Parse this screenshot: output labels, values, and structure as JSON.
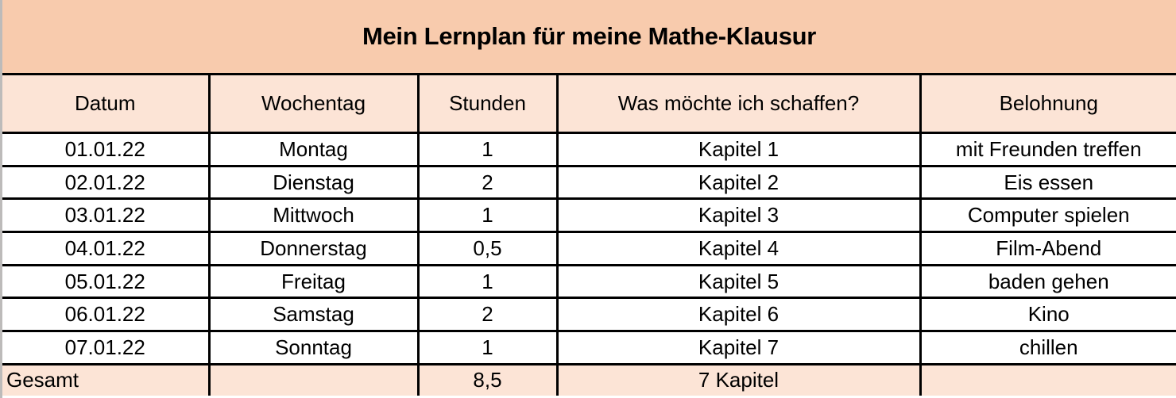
{
  "title": "Mein Lernplan für meine Mathe-Klausur",
  "colors": {
    "title_bg": "#F8CBAD",
    "header_bg": "#FCE4D6",
    "row_bg": "#FFFFFF",
    "border": "#000000",
    "text": "#000000",
    "page_edge": "#BDBBBA"
  },
  "table": {
    "column_keys": [
      "datum",
      "wochentag",
      "stunden",
      "ziel",
      "belohnung"
    ],
    "columns": [
      "Datum",
      "Wochentag",
      "Stunden",
      "Was möchte ich schaffen?",
      "Belohnung"
    ],
    "rows": [
      [
        "01.01.22",
        "Montag",
        "1",
        "Kapitel 1",
        "mit Freunden treffen"
      ],
      [
        "02.01.22",
        "Dienstag",
        "2",
        "Kapitel 2",
        "Eis essen"
      ],
      [
        "03.01.22",
        "Mittwoch",
        "1",
        "Kapitel 3",
        "Computer spielen"
      ],
      [
        "04.01.22",
        "Donnerstag",
        "0,5",
        "Kapitel 4",
        "Film-Abend"
      ],
      [
        "05.01.22",
        "Freitag",
        "1",
        "Kapitel 5",
        "baden gehen"
      ],
      [
        "06.01.22",
        "Samstag",
        "2",
        "Kapitel 6",
        "Kino"
      ],
      [
        "07.01.22",
        "Sonntag",
        "1",
        "Kapitel 7",
        "chillen"
      ]
    ],
    "footer": {
      "label": "Gesamt",
      "wochentag": "",
      "stunden": "8,5",
      "ziel": "7 Kapitel",
      "belohnung": ""
    }
  }
}
